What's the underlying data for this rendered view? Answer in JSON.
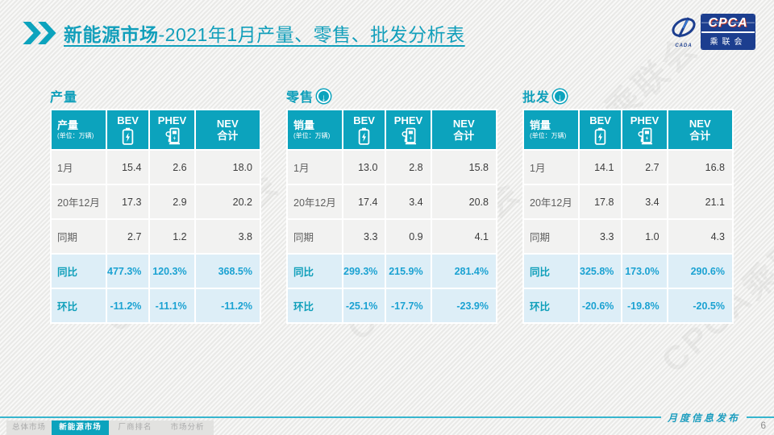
{
  "slide": {
    "title_bold": "新能源市场",
    "title_rest": "-2021年1月产量、零售、批发分析表",
    "watermark": "CPCA乘联会"
  },
  "logo": {
    "cpca": "CPCA",
    "cn": "乘联会",
    "sub": "CADA"
  },
  "colors": {
    "accent_teal": "#0ca3bd",
    "highlight_bg": "#ddeef7",
    "highlight_text": "#1ba2d2",
    "logo_navy": "#1c3e8f"
  },
  "tables": [
    {
      "section": "产量",
      "has_arrow": false,
      "unit_label": "产量",
      "unit_sub": "(单位：万辆)",
      "columns": [
        {
          "label": "BEV",
          "icon": "battery-icon"
        },
        {
          "label": "PHEV",
          "icon": "charging-station-icon"
        },
        {
          "label": "NEV",
          "label2": "合计"
        }
      ],
      "rows": [
        {
          "label": "1月",
          "type": "data",
          "values": [
            "15.4",
            "2.6",
            "18.0"
          ]
        },
        {
          "label": "20年12月",
          "type": "data",
          "values": [
            "17.3",
            "2.9",
            "20.2"
          ]
        },
        {
          "label": "同期",
          "type": "data",
          "values": [
            "2.7",
            "1.2",
            "3.8"
          ]
        },
        {
          "label": "同比",
          "type": "highlight",
          "values": [
            "477.3%",
            "120.3%",
            "368.5%"
          ]
        },
        {
          "label": "环比",
          "type": "highlight",
          "values": [
            "-11.2%",
            "-11.1%",
            "-11.2%"
          ]
        }
      ]
    },
    {
      "section": "零售",
      "has_arrow": true,
      "arrow_icon": "down-arrow-icon",
      "unit_label": "销量",
      "unit_sub": "(单位：万辆)",
      "columns": [
        {
          "label": "BEV",
          "icon": "battery-icon"
        },
        {
          "label": "PHEV",
          "icon": "charging-station-icon"
        },
        {
          "label": "NEV",
          "label2": "合计"
        }
      ],
      "rows": [
        {
          "label": "1月",
          "type": "data",
          "values": [
            "13.0",
            "2.8",
            "15.8"
          ]
        },
        {
          "label": "20年12月",
          "type": "data",
          "values": [
            "17.4",
            "3.4",
            "20.8"
          ]
        },
        {
          "label": "同期",
          "type": "data",
          "values": [
            "3.3",
            "0.9",
            "4.1"
          ]
        },
        {
          "label": "同比",
          "type": "highlight",
          "values": [
            "299.3%",
            "215.9%",
            "281.4%"
          ]
        },
        {
          "label": "环比",
          "type": "highlight",
          "values": [
            "-25.1%",
            "-17.7%",
            "-23.9%"
          ]
        }
      ]
    },
    {
      "section": "批发",
      "has_arrow": true,
      "arrow_icon": "down-arrow-icon",
      "unit_label": "销量",
      "unit_sub": "(单位：万辆)",
      "columns": [
        {
          "label": "BEV",
          "icon": "battery-icon"
        },
        {
          "label": "PHEV",
          "icon": "charging-station-icon"
        },
        {
          "label": "NEV",
          "label2": "合计"
        }
      ],
      "rows": [
        {
          "label": "1月",
          "type": "data",
          "values": [
            "14.1",
            "2.7",
            "16.8"
          ]
        },
        {
          "label": "20年12月",
          "type": "data",
          "values": [
            "17.8",
            "3.4",
            "21.1"
          ]
        },
        {
          "label": "同期",
          "type": "data",
          "values": [
            "3.3",
            "1.0",
            "4.3"
          ]
        },
        {
          "label": "同比",
          "type": "highlight",
          "values": [
            "325.8%",
            "173.0%",
            "290.6%"
          ]
        },
        {
          "label": "环比",
          "type": "highlight",
          "values": [
            "-20.6%",
            "-19.8%",
            "-20.5%"
          ]
        }
      ]
    }
  ],
  "nav_tabs": [
    {
      "id": "overall-market",
      "label": "总体市场",
      "active": false
    },
    {
      "id": "nev-market",
      "label": "新能源市场",
      "active": true
    },
    {
      "id": "oem-ranking",
      "label": "厂商排名",
      "active": false
    },
    {
      "id": "market-analysis",
      "label": "市场分析",
      "active": false
    }
  ],
  "footer": {
    "note": "月度信息发布",
    "page": "6"
  }
}
